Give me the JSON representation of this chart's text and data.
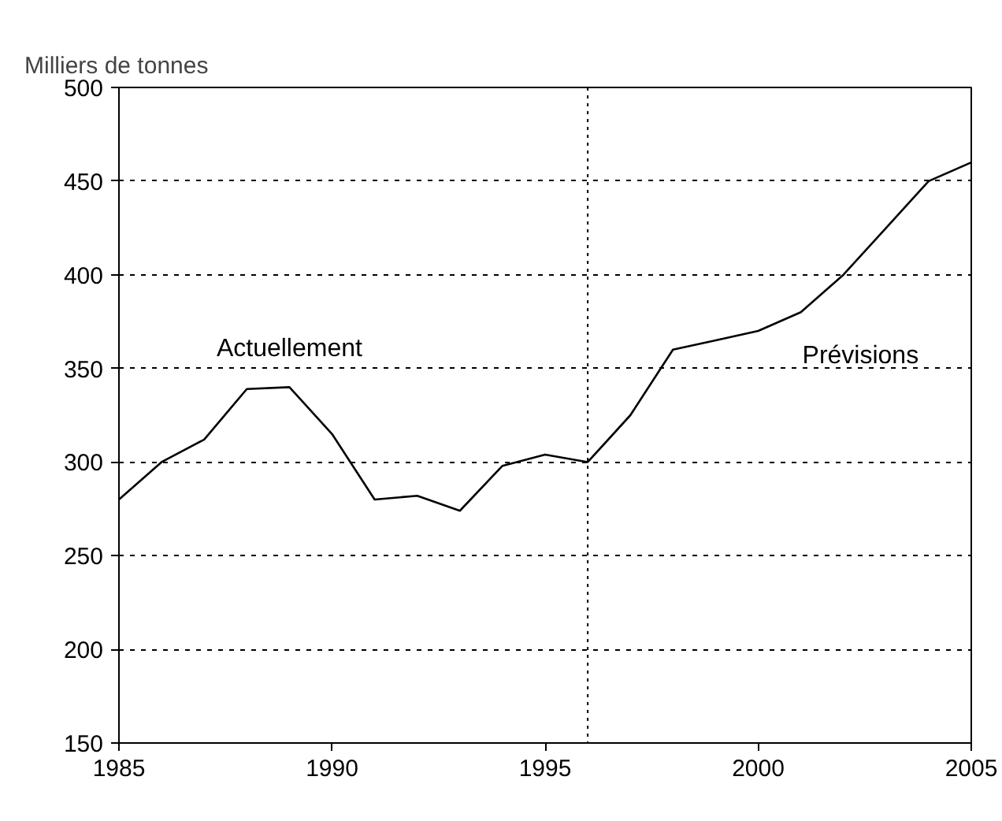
{
  "chart_data": {
    "type": "line",
    "ylabel": "Milliers de tonnes",
    "x": [
      1985,
      1986,
      1987,
      1988,
      1989,
      1990,
      1991,
      1992,
      1993,
      1994,
      1995,
      1996,
      1997,
      1998,
      1999,
      2000,
      2001,
      2002,
      2003,
      2004,
      2005
    ],
    "series": [
      {
        "color": "#000000",
        "values": [
          280,
          300,
          312,
          339,
          340,
          315,
          280,
          282,
          274,
          298,
          304,
          300,
          325,
          360,
          365,
          370,
          380,
          400,
          425,
          450,
          460
        ]
      }
    ],
    "xlim": [
      1985,
      2005
    ],
    "xticks": [
      1985,
      1990,
      1995,
      2000,
      2005
    ],
    "ylim": [
      150,
      500
    ],
    "yticks": [
      150,
      200,
      250,
      300,
      350,
      400,
      450,
      500
    ],
    "grid": "y",
    "marker": "none",
    "line_style": "solid",
    "ref_lines": [
      {
        "axis": "x",
        "value": 1996,
        "line_style": "dotted",
        "color": "#000000"
      }
    ],
    "annotations": [
      "Actuellement",
      "Prévisions"
    ]
  }
}
